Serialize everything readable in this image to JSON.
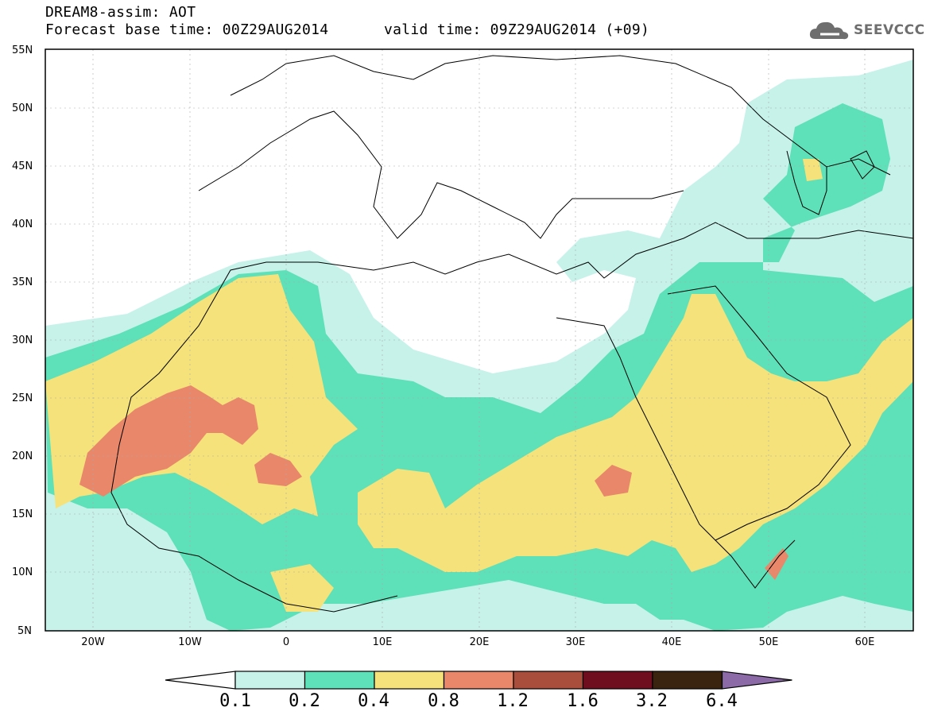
{
  "header": {
    "title": "DREAM8-assim: AOT",
    "forecast_base": "Forecast base time: 00Z29AUG2014",
    "valid_time": "valid time: 09Z29AUG2014 (+09)"
  },
  "logo": {
    "text": "SEEVCCC",
    "icon": "cloud-icon"
  },
  "map": {
    "lon_range": [
      -25,
      65
    ],
    "lat_range": [
      5,
      55
    ],
    "lat_ticks": [
      "55N",
      "50N",
      "45N",
      "40N",
      "35N",
      "30N",
      "25N",
      "20N",
      "15N",
      "10N",
      "5N"
    ],
    "lon_ticks": [
      "20W",
      "10W",
      "0",
      "10E",
      "20E",
      "30E",
      "40E",
      "50E",
      "60E"
    ]
  },
  "colorbar": {
    "labels": [
      "0.1",
      "0.2",
      "0.4",
      "0.8",
      "1.2",
      "1.6",
      "3.2",
      "6.4"
    ],
    "colors": [
      "#ffffff",
      "#c6f2ea",
      "#5ee0b8",
      "#f5e27a",
      "#e8876a",
      "#a94e3c",
      "#6e0e1e",
      "#3a2410",
      "#8c6aa8"
    ]
  }
}
